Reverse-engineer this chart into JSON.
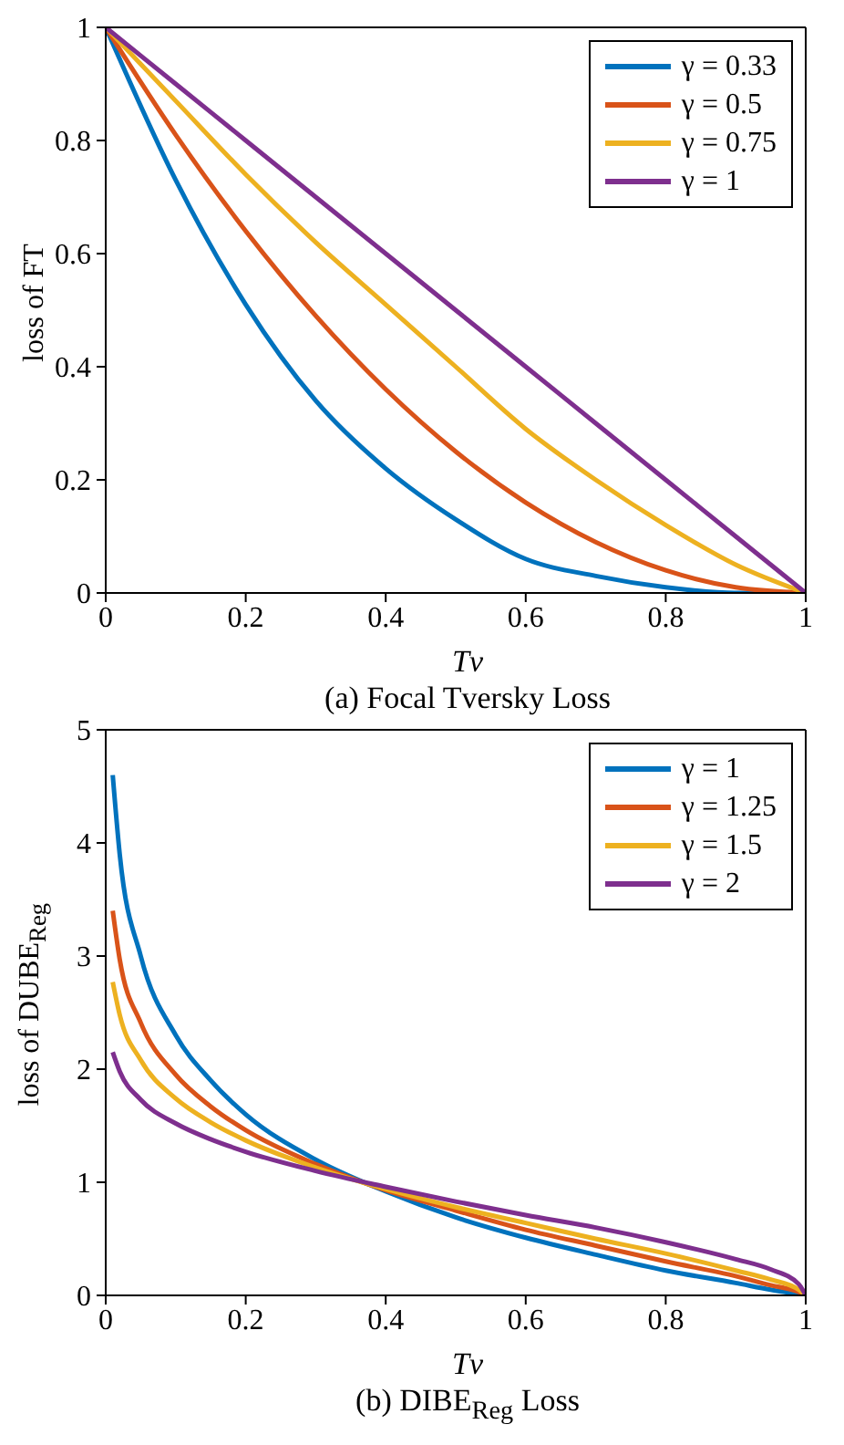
{
  "chart_data": [
    {
      "type": "line",
      "title": "(a) Focal Tversky Loss",
      "xlabel": "Tv",
      "ylabel": "loss of FT",
      "x": [
        0,
        0.1,
        0.2,
        0.3,
        0.4,
        0.5,
        0.6,
        0.7,
        0.8,
        0.9,
        1
      ],
      "xlim": [
        0,
        1
      ],
      "xticks": [
        0,
        0.2,
        0.4,
        0.6,
        0.8,
        1
      ],
      "ylim": [
        0,
        1
      ],
      "yticks": [
        0,
        0.2,
        0.4,
        0.6,
        0.8,
        1
      ],
      "grid": false,
      "legend": "top right",
      "marker": "none",
      "line_style": "solid",
      "series": [
        {
          "name": "γ = 0.33",
          "color": "#0072bd",
          "values": [
            1,
            0.73,
            0.51,
            0.34,
            0.22,
            0.13,
            0.06,
            0.03,
            0.01,
            0,
            0
          ]
        },
        {
          "name": "γ = 0.5",
          "color": "#d95319",
          "values": [
            1,
            0.81,
            0.64,
            0.49,
            0.36,
            0.25,
            0.16,
            0.09,
            0.04,
            0.01,
            0
          ]
        },
        {
          "name": "γ = 0.75",
          "color": "#edb120",
          "values": [
            1,
            0.87,
            0.74,
            0.62,
            0.51,
            0.4,
            0.29,
            0.2,
            0.12,
            0.05,
            0
          ]
        },
        {
          "name": "γ = 1",
          "color": "#7e2f8e",
          "values": [
            1,
            0.9,
            0.8,
            0.7,
            0.6,
            0.5,
            0.4,
            0.3,
            0.2,
            0.1,
            0
          ]
        }
      ]
    },
    {
      "type": "line",
      "title": "(b) DIBE$_{Reg}$ Loss",
      "xlabel": "Tv",
      "ylabel": "loss of DUBE$_{Reg}$",
      "x": [
        0.01,
        0.02,
        0.05,
        0.1,
        0.15,
        0.2,
        0.3,
        0.4,
        0.5,
        0.6,
        0.7,
        0.8,
        0.9,
        0.95,
        0.99,
        1
      ],
      "xlim": [
        0,
        1
      ],
      "xticks": [
        0,
        0.2,
        0.4,
        0.6,
        0.8,
        1
      ],
      "ylim": [
        0,
        5
      ],
      "yticks": [
        0,
        1,
        2,
        3,
        4,
        5
      ],
      "grid": false,
      "legend": "top right",
      "marker": "none",
      "line_style": "solid",
      "series": [
        {
          "name": "γ = 1",
          "color": "#0072bd",
          "values": [
            4.6,
            3.9,
            3,
            2.3,
            1.9,
            1.6,
            1.2,
            0.92,
            0.69,
            0.51,
            0.36,
            0.22,
            0.11,
            0.05,
            0.01,
            0
          ]
        },
        {
          "name": "γ = 1.25",
          "color": "#d95319",
          "values": [
            3.4,
            2.97,
            2.41,
            1.95,
            1.67,
            1.46,
            1.16,
            0.93,
            0.75,
            0.58,
            0.44,
            0.3,
            0.17,
            0.09,
            0.03,
            0
          ]
        },
        {
          "name": "γ = 1.5",
          "color": "#edb120",
          "values": [
            2.77,
            2.48,
            2.08,
            1.74,
            1.53,
            1.37,
            1.13,
            0.94,
            0.78,
            0.64,
            0.5,
            0.37,
            0.22,
            0.14,
            0.05,
            0
          ]
        },
        {
          "name": "γ = 2",
          "color": "#7e2f8e",
          "values": [
            2.15,
            1.98,
            1.73,
            1.52,
            1.38,
            1.27,
            1.1,
            0.96,
            0.83,
            0.71,
            0.6,
            0.47,
            0.32,
            0.23,
            0.1,
            0
          ]
        }
      ]
    }
  ]
}
